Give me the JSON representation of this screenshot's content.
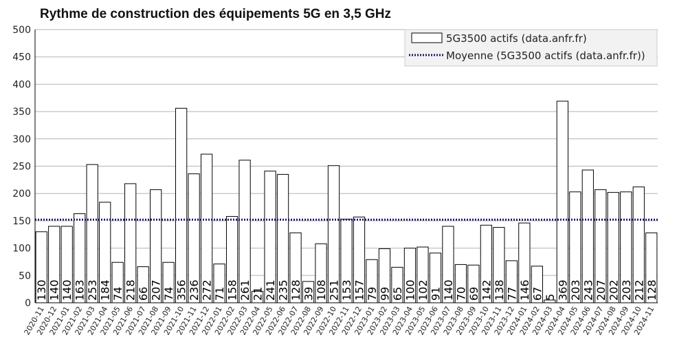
{
  "chart_data": {
    "type": "bar",
    "title": "Rythme de construction des équipements 5G en 3,5 GHz",
    "xlabel": "",
    "ylabel": "",
    "ylim": [
      0,
      500
    ],
    "yticks": [
      0,
      50,
      100,
      150,
      200,
      250,
      300,
      350,
      400,
      450,
      500
    ],
    "grid": true,
    "legend_position": "top-right",
    "categories": [
      "2020-11",
      "2020-12",
      "2021-01",
      "2021-02",
      "2021-03",
      "2021-04",
      "2021-05",
      "2021-06",
      "2021-07",
      "2021-08",
      "2021-09",
      "2021-10",
      "2021-11",
      "2021-12",
      "2022-01",
      "2022-02",
      "2022-03",
      "2022-04",
      "2022-05",
      "2022-06",
      "2022-07",
      "2022-08",
      "2022-09",
      "2022-10",
      "2022-11",
      "2022-12",
      "2023-01",
      "2023-02",
      "2023-03",
      "2023-04",
      "2023-05",
      "2023-06",
      "2023-07",
      "2023-08",
      "2023-09",
      "2023-10",
      "2023-11",
      "2023-12",
      "2024-01",
      "2024-02",
      "2024-03",
      "2024-04",
      "2024-05",
      "2024-06",
      "2024-07",
      "2024-08",
      "2024-09",
      "2024-10",
      "2024-11"
    ],
    "series": [
      {
        "name": "5G3500 actifs (data.anfr.fr)",
        "values": [
          130,
          140,
          140,
          163,
          253,
          184,
          74,
          218,
          66,
          207,
          74,
          356,
          236,
          272,
          71,
          158,
          261,
          21,
          241,
          235,
          128,
          39,
          108,
          251,
          153,
          157,
          79,
          99,
          65,
          100,
          102,
          91,
          140,
          70,
          69,
          142,
          138,
          77,
          146,
          67,
          5,
          369,
          203,
          243,
          207,
          202,
          203,
          212,
          128
        ]
      }
    ],
    "average": {
      "name": "Moyenne (5G3500 actifs (data.anfr.fr))",
      "value": 152
    }
  },
  "colors": {
    "bar_fill": "#ffffff",
    "bar_stroke": "#000000",
    "average_line": "#1a1a6e",
    "grid": "#b3b3b3",
    "legend_bg": "#f2f2f2",
    "axis_text": "#222222",
    "label_text": "#000000"
  }
}
